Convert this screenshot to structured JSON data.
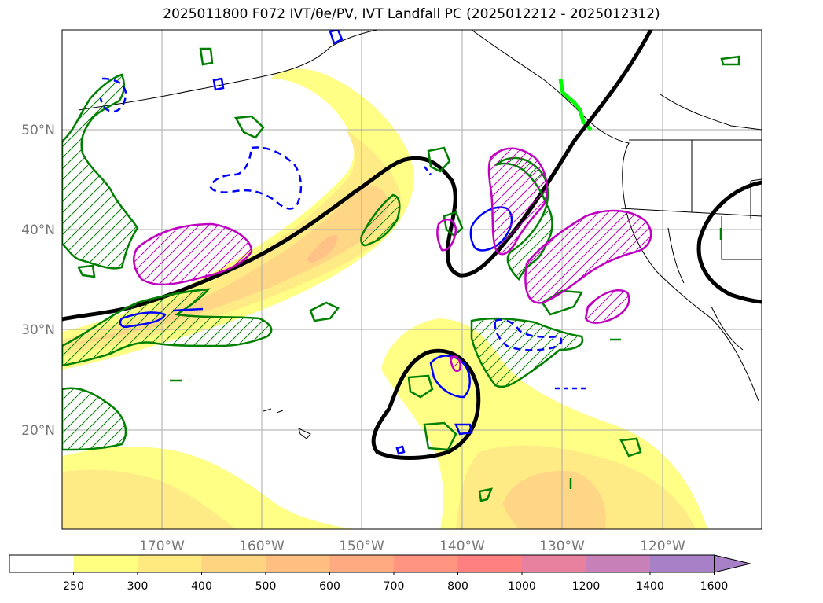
{
  "title": "2025011800 F072 IVT/θe/PV, IVT Landfall PC (2025012212 - 2025012312)",
  "map": {
    "lon_ticks": [
      "170°W",
      "160°W",
      "150°W",
      "140°W",
      "130°W",
      "120°W"
    ],
    "lat_ticks": [
      "50°N",
      "40°N",
      "30°N",
      "20°N"
    ],
    "gridlines": true
  },
  "colorbar": {
    "levels": [
      "250",
      "300",
      "400",
      "500",
      "600",
      "700",
      "800",
      "1000",
      "1200",
      "1400",
      "1600"
    ],
    "colors": [
      "#ffffff",
      "#ffff80",
      "#ffea80",
      "#ffd480",
      "#ffbf80",
      "#ffaa80",
      "#ff9580",
      "#ff8080",
      "#e880a0",
      "#c880b8",
      "#a880c8"
    ],
    "extend": "max"
  },
  "colors": {
    "ivt_fill_low": "#ffff80",
    "ivt_fill_mid": "#ffd480",
    "ivt_fill_high": "#ffaa80",
    "theta_contour": "#000000",
    "pv_positive": "#008000",
    "pv_negative": "#0000ff",
    "pc_contour": "#c000c0",
    "landfall": "#00ff00"
  }
}
